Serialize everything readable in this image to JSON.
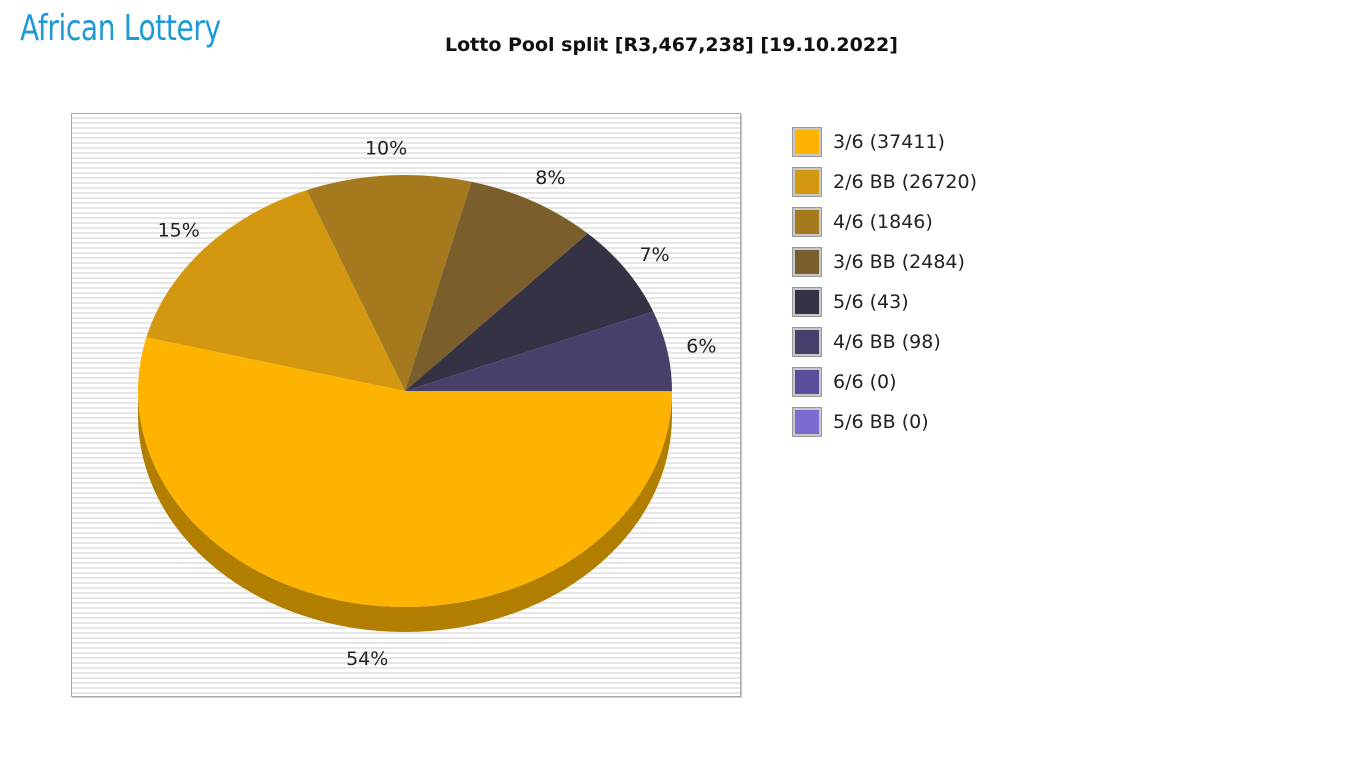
{
  "logo": {
    "text": "African Lottery"
  },
  "chart_data": {
    "type": "pie",
    "title": "Lotto Pool split [R3,467,238] [19.10.2022]",
    "legend_position": "right",
    "style": "3d",
    "slices": [
      {
        "label": "3/6 (37411)",
        "percent": 54,
        "color": "#FDB300",
        "shade": "#B17E00"
      },
      {
        "label": "2/6 BB (26720)",
        "percent": 15,
        "color": "#D3980F",
        "shade": "#946A0A"
      },
      {
        "label": "4/6 (1846)",
        "percent": 10,
        "color": "#A57A1E",
        "shade": "#735515"
      },
      {
        "label": "3/6 BB (2484)",
        "percent": 8,
        "color": "#7A5F2C",
        "shade": "#55421F"
      },
      {
        "label": "5/6 (43)",
        "percent": 7,
        "color": "#363246",
        "shade": "#262331"
      },
      {
        "label": "4/6 BB (98)",
        "percent": 6,
        "color": "#48406A",
        "shade": "#322D4A"
      },
      {
        "label": "6/6 (0)",
        "percent": 0,
        "color": "#5A4E9A",
        "shade": "#3F376C"
      },
      {
        "label": "5/6 BB (0)",
        "percent": 0,
        "color": "#7B6CCF",
        "shade": "#564C91"
      }
    ]
  }
}
